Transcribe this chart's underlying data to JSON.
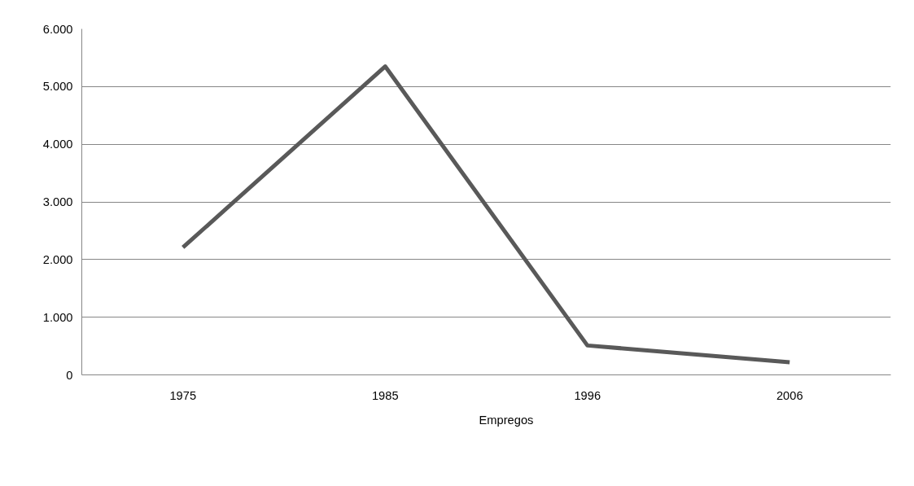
{
  "chart_data": {
    "type": "line",
    "categories": [
      "1975",
      "1985",
      "1996",
      "2006"
    ],
    "series": [
      {
        "name": "Empregos",
        "color": "#595959",
        "values": [
          2210,
          5350,
          510,
          220
        ]
      }
    ],
    "ylim": [
      0,
      6000
    ],
    "yticks": [
      {
        "value": 0,
        "label": "0"
      },
      {
        "value": 1000,
        "label": "1.000"
      },
      {
        "value": 2000,
        "label": "2.000"
      },
      {
        "value": 3000,
        "label": "3.000"
      },
      {
        "value": 4000,
        "label": "4.000"
      },
      {
        "value": 5000,
        "label": "5.000"
      },
      {
        "value": 6000,
        "label": "6.000"
      }
    ],
    "grid": "y",
    "legend": "bottom",
    "marker": "none",
    "line_style": "solid"
  }
}
